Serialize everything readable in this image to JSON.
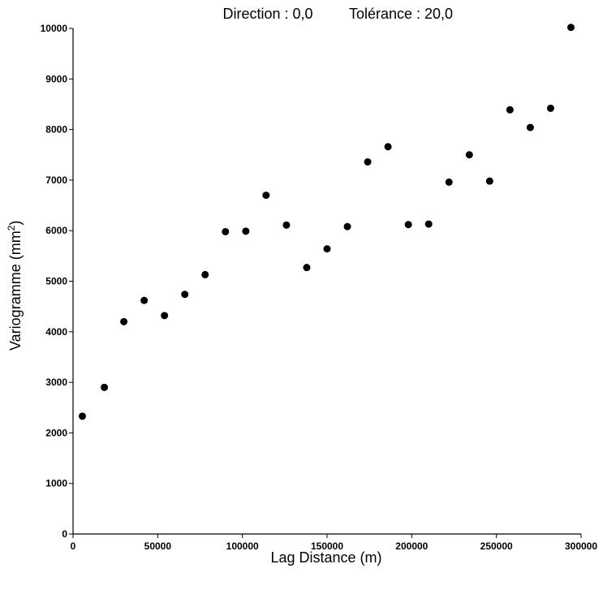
{
  "chart_data": {
    "type": "scatter",
    "title_direction": "Direction : 0,0",
    "title_tolerance": "Tolérance : 20,0",
    "xlabel": "Lag Distance (m)",
    "ylabel_main": "Variogramme (mm",
    "ylabel_sup": "2",
    "ylabel_close": ")",
    "xlim": [
      0,
      300000
    ],
    "ylim": [
      0,
      10000
    ],
    "xticks": [
      0,
      50000,
      100000,
      150000,
      200000,
      250000,
      300000
    ],
    "yticks": [
      0,
      1000,
      2000,
      3000,
      4000,
      5000,
      6000,
      7000,
      8000,
      9000,
      10000
    ],
    "grid": false,
    "x": [
      5500,
      18500,
      30000,
      42000,
      54000,
      66000,
      78000,
      90000,
      102000,
      114000,
      126000,
      138000,
      150000,
      162000,
      174000,
      186000,
      198000,
      210000,
      222000,
      234000,
      246000,
      258000,
      270000,
      282000,
      294000
    ],
    "y": [
      2330,
      2900,
      4200,
      4620,
      4320,
      4740,
      5130,
      5980,
      5990,
      6700,
      6110,
      5270,
      5640,
      6080,
      7360,
      7660,
      6120,
      6130,
      6960,
      7500,
      6980,
      8390,
      8040,
      8420,
      10020
    ]
  }
}
